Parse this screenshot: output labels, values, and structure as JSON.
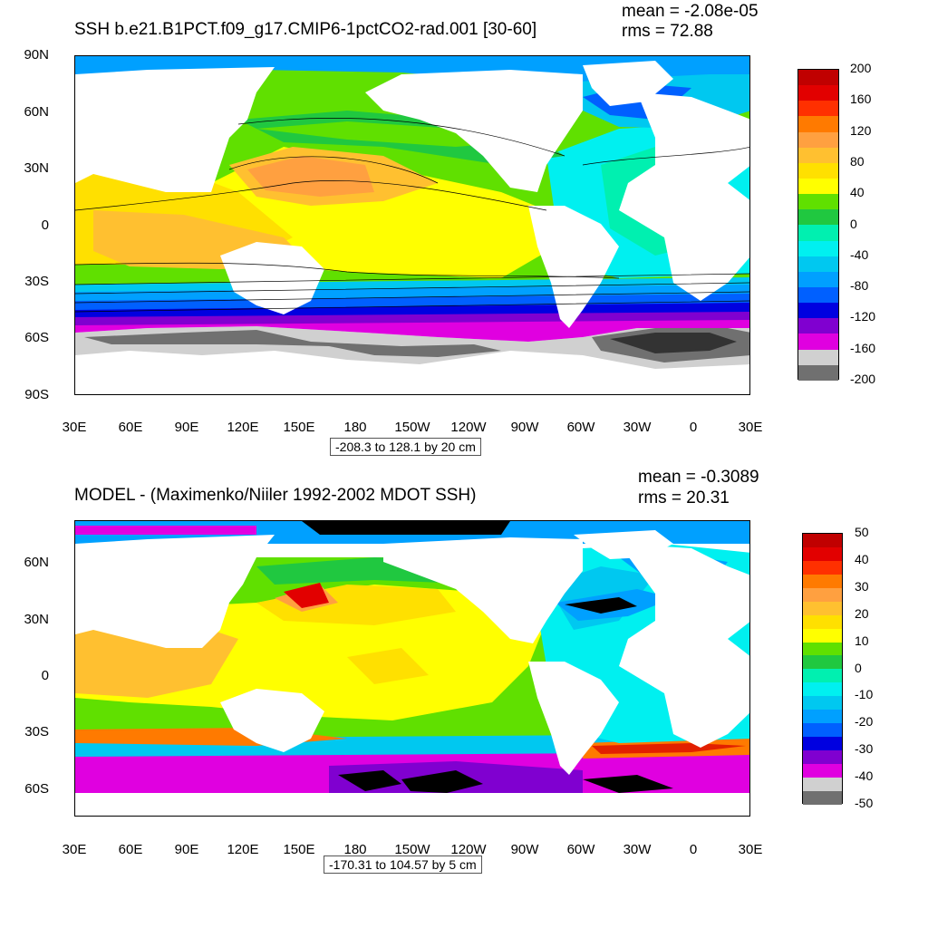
{
  "top": {
    "title": "SSH b.e21.B1PCT.f09_g17.CMIP6-1pctCO2-rad.001 [30-60]",
    "mean": "mean = -2.08e-05",
    "rms": "rms = 72.88",
    "range": "-208.3 to 128.1 by 20 cm",
    "lat_labels": [
      "90N",
      "60N",
      "30N",
      "0",
      "30S",
      "60S",
      "90S"
    ],
    "lon_labels": [
      "30E",
      "60E",
      "90E",
      "120E",
      "150E",
      "180",
      "150W",
      "120W",
      "90W",
      "60W",
      "30W",
      "0",
      "30E"
    ],
    "legend_labels": [
      "200",
      "160",
      "120",
      "80",
      "40",
      "0",
      "-40",
      "-80",
      "-120",
      "-160",
      "-200"
    ],
    "legend_colors": [
      "#c00000",
      "#e20000",
      "#ff3000",
      "#ff7a00",
      "#ffa040",
      "#ffc030",
      "#ffe000",
      "#ffff00",
      "#60e000",
      "#20c840",
      "#00f0b0",
      "#00f0f0",
      "#00c8f0",
      "#00a0ff",
      "#0060ff",
      "#0000e0",
      "#8000d0",
      "#e000e0",
      "#d0d0d0",
      "#707070"
    ]
  },
  "bottom": {
    "title": "MODEL - (Maximenko/Niiler 1992-2002 MDOT SSH)",
    "mean": "mean = -0.3089",
    "rms": "rms = 20.31",
    "range": "-170.31 to 104.57 by 5 cm",
    "lat_labels": [
      "60N",
      "30N",
      "0",
      "30S",
      "60S"
    ],
    "lon_labels": [
      "30E",
      "60E",
      "90E",
      "120E",
      "150E",
      "180",
      "150W",
      "120W",
      "90W",
      "60W",
      "30W",
      "0",
      "30E"
    ],
    "legend_labels": [
      "50",
      "40",
      "30",
      "20",
      "10",
      "0",
      "-10",
      "-20",
      "-30",
      "-40",
      "-50"
    ],
    "legend_colors": [
      "#c00000",
      "#e20000",
      "#ff3000",
      "#ff7a00",
      "#ffa040",
      "#ffc030",
      "#ffe000",
      "#ffff00",
      "#60e000",
      "#20c840",
      "#00f0b0",
      "#00f0f0",
      "#00c8f0",
      "#00a0ff",
      "#0060ff",
      "#0000e0",
      "#8000d0",
      "#e000e0",
      "#d0d0d0",
      "#707070"
    ]
  }
}
